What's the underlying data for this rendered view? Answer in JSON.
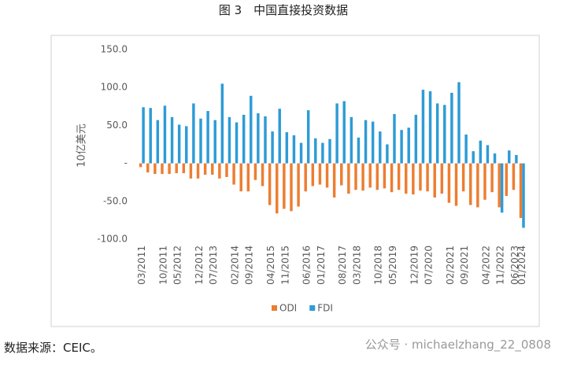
{
  "header": {
    "title": "图 3　中国直接投资数据"
  },
  "chart_data": {
    "type": "bar",
    "y_label": "10亿美元",
    "categories": [
      "03/2011",
      null,
      null,
      "10/2011",
      null,
      "05/2012",
      null,
      null,
      "12/2012",
      null,
      "07/2013",
      null,
      null,
      "02/2014",
      null,
      "09/2014",
      null,
      null,
      "04/2015",
      null,
      "11/2015",
      null,
      null,
      "06/2016",
      null,
      "01/2017",
      null,
      null,
      "08/2017",
      null,
      "03/2018",
      null,
      null,
      "10/2018",
      null,
      "05/2019",
      null,
      null,
      "12/2019",
      null,
      "07/2020",
      null,
      null,
      "02/2021",
      null,
      "09/2021",
      null,
      null,
      "04/2022",
      null,
      "11/2022",
      null,
      "06/2023",
      "01/2024"
    ],
    "series": [
      {
        "name": "ODI",
        "color": "#ed7d31",
        "values": [
          -5,
          -12,
          -14,
          -14,
          -14,
          -13,
          -13,
          -20,
          -20,
          -15,
          -15,
          -20,
          -18,
          -28,
          -37,
          -37,
          -22,
          -30,
          -55,
          -66,
          -60,
          -63,
          -57,
          -37,
          -30,
          -28,
          -32,
          -45,
          -29,
          -40,
          -35,
          -36,
          -32,
          -35,
          -33,
          -38,
          -35,
          -40,
          -41,
          -36,
          -37,
          -45,
          -40,
          -52,
          -56,
          -37,
          -55,
          -58,
          -48,
          -38,
          -58,
          -43,
          -35,
          -72
        ]
      },
      {
        "name": "FDI",
        "color": "#2e9bd6",
        "values": [
          74,
          73,
          57,
          76,
          61,
          51,
          49,
          79,
          59,
          69,
          57,
          105,
          61,
          54,
          64,
          89,
          66,
          62,
          42,
          72,
          41,
          37,
          27,
          70,
          33,
          27,
          32,
          79,
          82,
          61,
          34,
          57,
          55,
          42,
          25,
          65,
          44,
          47,
          64,
          97,
          95,
          79,
          77,
          93,
          107,
          38,
          16,
          30,
          24,
          13,
          -65,
          17,
          11,
          -85
        ]
      }
    ],
    "ylim": [
      -100,
      150
    ],
    "yticks": [
      {
        "value": 150,
        "label": "150.0"
      },
      {
        "value": 100,
        "label": "100.0"
      },
      {
        "value": 50,
        "label": "50.0"
      },
      {
        "value": 0,
        "label": "-"
      },
      {
        "value": -50,
        "label": "-50.0"
      },
      {
        "value": -100,
        "label": "-100.0"
      }
    ],
    "legend": "bottom"
  },
  "footer": {
    "source": "数据来源：CEIC。",
    "watermark": "公众号 · michaelzhang_22_0808"
  }
}
